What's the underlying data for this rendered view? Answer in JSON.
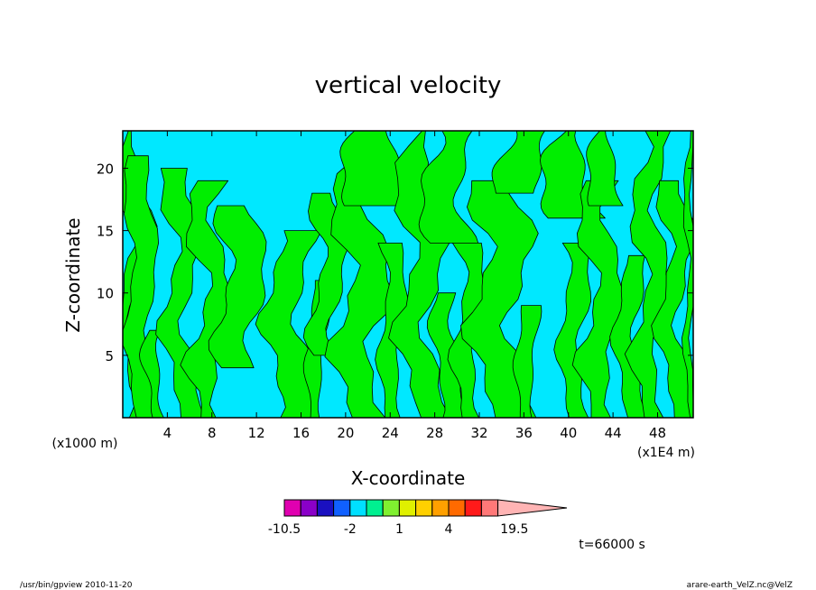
{
  "chart_data": {
    "type": "heatmap",
    "title": "vertical velocity",
    "xlabel": "X-coordinate",
    "ylabel": "Z-coordinate",
    "x_unit": "(x1E4 m)",
    "y_unit": "(x1000 m)",
    "xlim": [
      0,
      51.2
    ],
    "ylim": [
      0,
      23
    ],
    "x_ticks": [
      4,
      8,
      12,
      16,
      20,
      24,
      28,
      32,
      36,
      40,
      44,
      48
    ],
    "y_ticks": [
      5,
      10,
      15,
      20
    ],
    "colorbar": {
      "levels": [
        -10.5,
        -7.5,
        -5,
        -3.5,
        -2,
        -1,
        0,
        1,
        2,
        3,
        4,
        7.5,
        11.5,
        15.5,
        19.5
      ],
      "colors": [
        "#e000b0",
        "#8a00c8",
        "#1a10c0",
        "#1060ff",
        "#00e0ff",
        "#00f090",
        "#80f030",
        "#e0f000",
        "#ffd000",
        "#ffa000",
        "#ff6a00",
        "#ff1a1a",
        "#ff7878",
        "#ffb4b4"
      ],
      "tick_labels": [
        "-10.5",
        "-2",
        "1",
        "4",
        "19.5"
      ],
      "tick_values": [
        -10.5,
        -2,
        1,
        4,
        19.5
      ]
    },
    "field_colors": {
      "updraft": "#00ee00",
      "weak": "#00e8ff"
    },
    "time_label": "t=66000 s"
  },
  "footer": {
    "left": "/usr/bin/gpview   2010-11-20",
    "right": "arare-earth_VelZ.nc@VelZ"
  }
}
